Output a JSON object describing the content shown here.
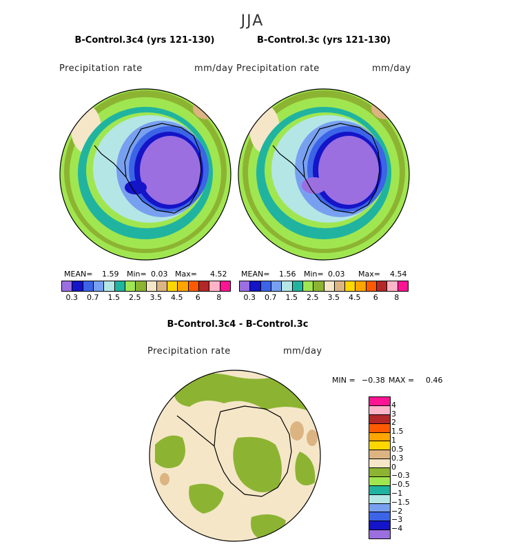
{
  "figure": {
    "season": "JJA"
  },
  "panels": {
    "left": {
      "title": "B-Control.3c4 (yrs 121-130)",
      "variable": "Precipitation rate",
      "units": "mm/day",
      "stats": {
        "mean_label": "MEAN=",
        "mean": "1.59",
        "min_label": "Min=",
        "min": "0.03",
        "max_label": "Max=",
        "max": "4.52"
      }
    },
    "right": {
      "title": "B-Control.3c (yrs 121-130)",
      "variable": "Precipitation rate",
      "units": "mm/day",
      "stats": {
        "mean_label": "MEAN=",
        "mean": "1.56",
        "min_label": "Min=",
        "min": "0.03",
        "max_label": "Max=",
        "max": "4.54"
      }
    },
    "diff": {
      "title": "B-Control.3c4 - B-Control.3c",
      "variable": "Precipitation rate",
      "units": "mm/day",
      "stats": {
        "min_label": "MIN =",
        "min": "−0.38",
        "max_label": "MAX =",
        "max": "0.46"
      }
    }
  },
  "colorbar_abs": {
    "colors": [
      "#9b6fe0",
      "#1414c8",
      "#3c64e6",
      "#78a0f0",
      "#b4e6e6",
      "#20b4a0",
      "#a0e650",
      "#8cb432",
      "#f5e6c8",
      "#dcb482",
      "#ffd700",
      "#ffa500",
      "#ff5a00",
      "#b42828",
      "#ffb4c8",
      "#ff1493"
    ],
    "tick_labels": [
      "0.3",
      "0.7",
      "1.5",
      "2.5",
      "3.5",
      "4.5",
      "6",
      "8"
    ]
  },
  "colorbar_diff": {
    "colors": [
      "#ff1493",
      "#ffb4c8",
      "#b42828",
      "#ff5a00",
      "#ffa500",
      "#ffd700",
      "#dcb482",
      "#f5e6c8",
      "#8cb432",
      "#a0e650",
      "#20b4a0",
      "#b4e6e6",
      "#78a0f0",
      "#3c64e6",
      "#1414c8",
      "#9b6fe0"
    ],
    "tick_labels": [
      "4",
      "3",
      "2",
      "1.5",
      "1",
      "0.5",
      "0.3",
      "0",
      "−0.3",
      "−0.5",
      "−1",
      "−1.5",
      "−2",
      "−3",
      "−4"
    ]
  }
}
